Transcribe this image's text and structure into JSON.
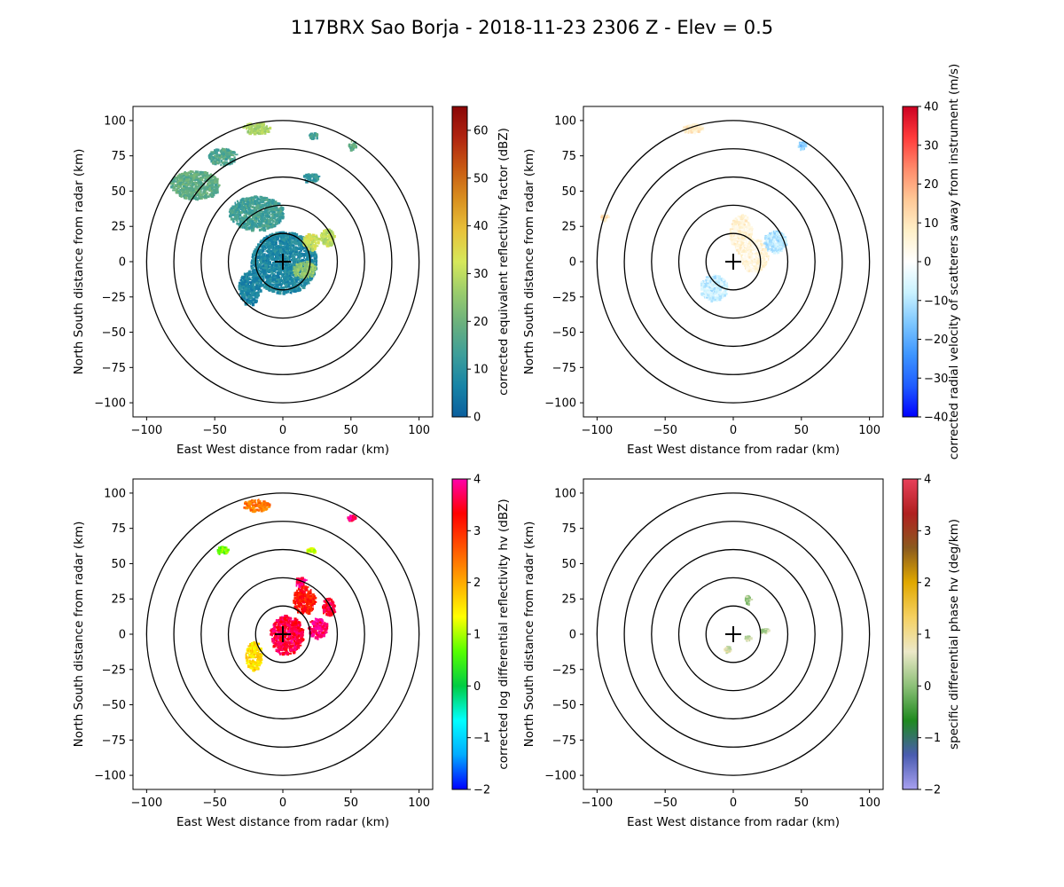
{
  "figure_title": "117BRX Sao Borja - 2018-11-23 2306 Z -  Elev = 0.5",
  "chart_data": [
    {
      "type": "ppi",
      "field": "reflectivity",
      "xlabel": "East West distance from radar (km)",
      "ylabel": "North South distance from radar (km)",
      "xlim": [
        -110,
        110
      ],
      "ylim": [
        -110,
        110
      ],
      "xticks": [
        -100,
        -50,
        0,
        50,
        100
      ],
      "yticks": [
        -100,
        -75,
        -50,
        -25,
        0,
        25,
        50,
        75,
        100
      ],
      "range_rings_km": [
        20,
        40,
        60,
        80,
        100
      ],
      "colorbar": {
        "label": "corrected equivalent reflectivity factor (dBZ)",
        "min": 0,
        "max": 65,
        "ticks": [
          0,
          10,
          20,
          30,
          40,
          50,
          60
        ],
        "colors": [
          "#0b5f9e",
          "#1784a6",
          "#3d9e9a",
          "#6ab07e",
          "#9acc6c",
          "#d6e85a",
          "#e8c23a",
          "#d9901f",
          "#c85a12",
          "#b02410",
          "#8a0606"
        ]
      },
      "echo_regions": [
        {
          "x": 0,
          "y": 0,
          "rx": 24,
          "ry": 22,
          "value": 8
        },
        {
          "x": -25,
          "y": -18,
          "rx": 8,
          "ry": 12,
          "value": 7
        },
        {
          "x": -20,
          "y": 35,
          "rx": 20,
          "ry": 12,
          "value": 14
        },
        {
          "x": -65,
          "y": 55,
          "rx": 18,
          "ry": 10,
          "value": 18
        },
        {
          "x": -45,
          "y": 75,
          "rx": 10,
          "ry": 6,
          "value": 16
        },
        {
          "x": -20,
          "y": 95,
          "rx": 10,
          "ry": 4,
          "value": 28
        },
        {
          "x": 20,
          "y": 15,
          "rx": 6,
          "ry": 6,
          "value": 32
        },
        {
          "x": 32,
          "y": 18,
          "rx": 5,
          "ry": 6,
          "value": 30
        },
        {
          "x": 15,
          "y": -5,
          "rx": 8,
          "ry": 6,
          "value": 25
        },
        {
          "x": 20,
          "y": 60,
          "rx": 6,
          "ry": 3,
          "value": 12
        },
        {
          "x": 50,
          "y": 83,
          "rx": 3,
          "ry": 3,
          "value": 18
        },
        {
          "x": 22,
          "y": 90,
          "rx": 3,
          "ry": 2,
          "value": 14
        }
      ]
    },
    {
      "type": "ppi",
      "field": "velocity",
      "xlabel": "East West distance from radar (km)",
      "ylabel": "North South distance from radar (km)",
      "xlim": [
        -110,
        110
      ],
      "ylim": [
        -110,
        110
      ],
      "xticks": [
        -100,
        -50,
        0,
        50,
        100
      ],
      "yticks": [
        -100,
        -75,
        -50,
        -25,
        0,
        25,
        50,
        75,
        100
      ],
      "range_rings_km": [
        20,
        40,
        60,
        80,
        100
      ],
      "colorbar": {
        "label": "corrected radial velocity of scatterers away from instrument (m/s)",
        "min": -40,
        "max": 40,
        "ticks": [
          -40,
          -30,
          -20,
          -10,
          0,
          10,
          20,
          30,
          40
        ],
        "colors": [
          "#0000ff",
          "#1f5cff",
          "#3d95ff",
          "#7cc6ff",
          "#c9f2ff",
          "#ffffff",
          "#fff0c8",
          "#ffc896",
          "#ff8a6a",
          "#ff3b3b",
          "#cc0022"
        ]
      },
      "echo_regions": [
        {
          "x": 5,
          "y": 20,
          "rx": 8,
          "ry": 14,
          "value": 6
        },
        {
          "x": 15,
          "y": 5,
          "rx": 10,
          "ry": 12,
          "value": 5
        },
        {
          "x": -15,
          "y": -18,
          "rx": 10,
          "ry": 9,
          "value": -8
        },
        {
          "x": 30,
          "y": 15,
          "rx": 8,
          "ry": 8,
          "value": -10
        },
        {
          "x": -30,
          "y": 95,
          "rx": 8,
          "ry": 3,
          "value": 8
        },
        {
          "x": 50,
          "y": 83,
          "rx": 3,
          "ry": 3,
          "value": -14
        },
        {
          "x": -95,
          "y": 32,
          "rx": 3,
          "ry": 2,
          "value": 10
        }
      ]
    },
    {
      "type": "ppi",
      "field": "differential_reflectivity",
      "xlabel": "East West distance from radar (km)",
      "ylabel": "North South distance from radar (km)",
      "xlim": [
        -110,
        110
      ],
      "ylim": [
        -110,
        110
      ],
      "xticks": [
        -100,
        -50,
        0,
        50,
        100
      ],
      "yticks": [
        -100,
        -75,
        -50,
        -25,
        0,
        25,
        50,
        75,
        100
      ],
      "range_rings_km": [
        20,
        40,
        60,
        80,
        100
      ],
      "colorbar": {
        "label": "corrected log differential reflectivity hv (dBZ)",
        "min": -2,
        "max": 4,
        "ticks": [
          -2,
          -1,
          0,
          1,
          2,
          3,
          4
        ],
        "colors": [
          "#0000ff",
          "#00aaff",
          "#00ffff",
          "#00cc44",
          "#55ff00",
          "#ffff00",
          "#ffaa00",
          "#ff5500",
          "#ff0000",
          "#ff00aa"
        ]
      },
      "echo_regions": [
        {
          "x": 2,
          "y": 0,
          "rx": 12,
          "ry": 14,
          "value": 3.6
        },
        {
          "x": 15,
          "y": 25,
          "rx": 8,
          "ry": 10,
          "value": 3.2
        },
        {
          "x": 25,
          "y": 5,
          "rx": 7,
          "ry": 7,
          "value": 3.8
        },
        {
          "x": 33,
          "y": 20,
          "rx": 5,
          "ry": 6,
          "value": 3.5
        },
        {
          "x": -22,
          "y": -15,
          "rx": 6,
          "ry": 10,
          "value": 1.6
        },
        {
          "x": -20,
          "y": 92,
          "rx": 10,
          "ry": 4,
          "value": 2.4
        },
        {
          "x": -45,
          "y": 60,
          "rx": 4,
          "ry": 3,
          "value": 0.8
        },
        {
          "x": 12,
          "y": 38,
          "rx": 4,
          "ry": 3,
          "value": 3.8
        },
        {
          "x": 20,
          "y": 60,
          "rx": 3,
          "ry": 2,
          "value": 1.2
        },
        {
          "x": 50,
          "y": 83,
          "rx": 3,
          "ry": 2,
          "value": 3.7
        }
      ]
    },
    {
      "type": "ppi",
      "field": "specific_differential_phase",
      "xlabel": "East West distance from radar (km)",
      "ylabel": "North South distance from radar (km)",
      "xlim": [
        -110,
        110
      ],
      "ylim": [
        -110,
        110
      ],
      "xticks": [
        -100,
        -50,
        0,
        50,
        100
      ],
      "yticks": [
        -100,
        -75,
        -50,
        -25,
        0,
        25,
        50,
        75,
        100
      ],
      "range_rings_km": [
        20,
        40,
        60,
        80,
        100
      ],
      "colorbar": {
        "label": "specific differential phase hv (deg/km)",
        "min": -2,
        "max": 4,
        "ticks": [
          -2,
          -1,
          0,
          1,
          2,
          3,
          4
        ],
        "colors": [
          "#a8a0f0",
          "#4a5cb0",
          "#1f8a1f",
          "#8cc078",
          "#ece8c8",
          "#f5d060",
          "#e0a800",
          "#8b5a1e",
          "#b02020",
          "#e8405a"
        ]
      },
      "echo_regions": [
        {
          "x": 10,
          "y": 25,
          "rx": 2,
          "ry": 3,
          "value": 0.2
        },
        {
          "x": 22,
          "y": 3,
          "rx": 3,
          "ry": 1.5,
          "value": 0.3
        },
        {
          "x": 10,
          "y": -2,
          "rx": 2,
          "ry": 1.5,
          "value": 0.4
        },
        {
          "x": -5,
          "y": -10,
          "rx": 2,
          "ry": 2,
          "value": 0.6
        }
      ]
    }
  ]
}
